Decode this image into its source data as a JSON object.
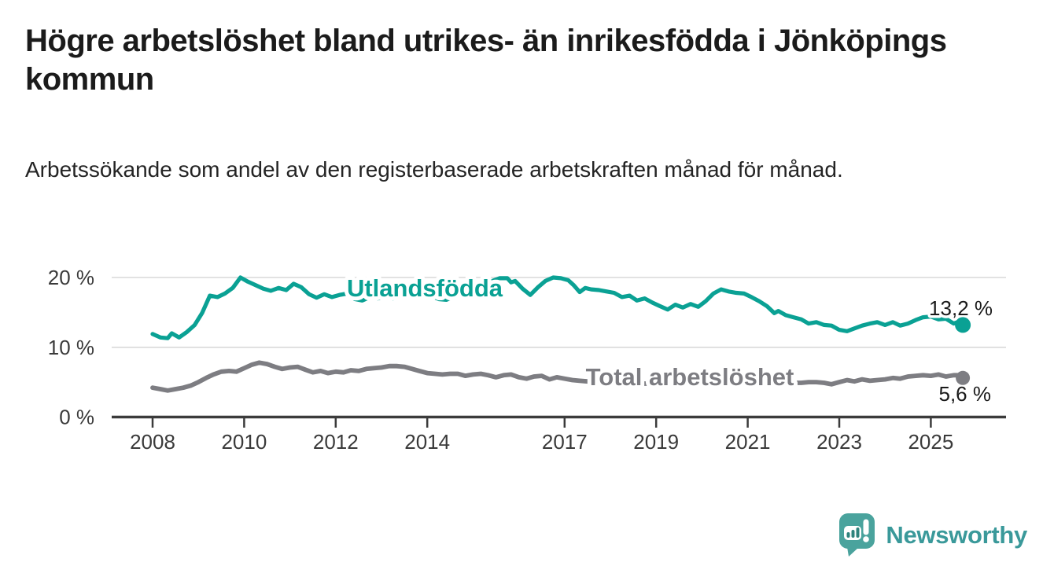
{
  "header": {
    "title": "Högre arbetslöshet bland utrikes- än inrikesfödda i Jönköpings kommun",
    "subtitle": "Arbetssökande som andel av den registerbaserade arbetskraften månad för månad."
  },
  "chart_data": {
    "type": "line",
    "title": "Högre arbetslöshet bland utrikes- än inrikesfödda i Jönköpings kommun",
    "subtitle": "Arbetssökande som andel av den registerbaserade arbetskraften månad för månad.",
    "unit": "%",
    "grid": true,
    "legend_position": "inline-labels-on-lines",
    "x_axis": {
      "ticks": [
        2008,
        2010,
        2012,
        2014,
        2017,
        2019,
        2021,
        2023,
        2025
      ],
      "range": [
        2007.1,
        2026.6
      ]
    },
    "y_axis": {
      "ticks": [
        0,
        10,
        20
      ],
      "tick_labels": [
        "0 %",
        "10 %",
        "20 %"
      ],
      "range": [
        0,
        21.5
      ]
    },
    "series": [
      {
        "name": "Utlandsfödda",
        "color": "#0aa194",
        "end_value": 13.2,
        "end_label": "13,2 %",
        "points": [
          [
            2008.0,
            11.9
          ],
          [
            2008.17,
            11.4
          ],
          [
            2008.33,
            11.3
          ],
          [
            2008.42,
            12.0
          ],
          [
            2008.58,
            11.4
          ],
          [
            2008.75,
            12.2
          ],
          [
            2008.92,
            13.2
          ],
          [
            2009.08,
            14.9
          ],
          [
            2009.25,
            17.4
          ],
          [
            2009.42,
            17.2
          ],
          [
            2009.58,
            17.7
          ],
          [
            2009.75,
            18.5
          ],
          [
            2009.92,
            20.0
          ],
          [
            2010.08,
            19.4
          ],
          [
            2010.25,
            18.9
          ],
          [
            2010.42,
            18.4
          ],
          [
            2010.58,
            18.1
          ],
          [
            2010.75,
            18.5
          ],
          [
            2010.92,
            18.2
          ],
          [
            2011.08,
            19.1
          ],
          [
            2011.25,
            18.6
          ],
          [
            2011.42,
            17.6
          ],
          [
            2011.58,
            17.1
          ],
          [
            2011.75,
            17.6
          ],
          [
            2011.92,
            17.2
          ],
          [
            2012.08,
            17.5
          ],
          [
            2012.25,
            17.7
          ],
          [
            2012.42,
            16.9
          ],
          [
            2012.58,
            16.7
          ],
          [
            2012.75,
            17.2
          ],
          [
            2012.92,
            17.0
          ],
          [
            2013.08,
            17.3
          ],
          [
            2013.25,
            17.0
          ],
          [
            2013.42,
            17.4
          ],
          [
            2013.58,
            17.3
          ],
          [
            2013.75,
            17.4
          ],
          [
            2013.92,
            17.3
          ],
          [
            2014.08,
            17.4
          ],
          [
            2014.25,
            16.9
          ],
          [
            2014.42,
            16.8
          ],
          [
            2014.58,
            17.3
          ],
          [
            2014.75,
            17.5
          ],
          [
            2014.92,
            17.8
          ],
          [
            2015.08,
            18.2
          ],
          [
            2015.25,
            18.8
          ],
          [
            2015.42,
            19.5
          ],
          [
            2015.58,
            19.9
          ],
          [
            2015.75,
            19.9
          ],
          [
            2015.83,
            19.3
          ],
          [
            2015.92,
            19.5
          ],
          [
            2016.08,
            18.4
          ],
          [
            2016.25,
            17.5
          ],
          [
            2016.42,
            18.6
          ],
          [
            2016.58,
            19.5
          ],
          [
            2016.75,
            20.0
          ],
          [
            2016.92,
            19.9
          ],
          [
            2017.08,
            19.6
          ],
          [
            2017.2,
            18.9
          ],
          [
            2017.33,
            17.9
          ],
          [
            2017.45,
            18.5
          ],
          [
            2017.58,
            18.3
          ],
          [
            2017.75,
            18.2
          ],
          [
            2017.92,
            18.0
          ],
          [
            2018.08,
            17.8
          ],
          [
            2018.25,
            17.2
          ],
          [
            2018.42,
            17.4
          ],
          [
            2018.58,
            16.7
          ],
          [
            2018.75,
            17.0
          ],
          [
            2018.92,
            16.4
          ],
          [
            2019.08,
            15.9
          ],
          [
            2019.25,
            15.4
          ],
          [
            2019.42,
            16.1
          ],
          [
            2019.58,
            15.7
          ],
          [
            2019.75,
            16.2
          ],
          [
            2019.92,
            15.8
          ],
          [
            2020.08,
            16.6
          ],
          [
            2020.25,
            17.7
          ],
          [
            2020.42,
            18.3
          ],
          [
            2020.58,
            18.0
          ],
          [
            2020.75,
            17.8
          ],
          [
            2020.92,
            17.7
          ],
          [
            2021.08,
            17.2
          ],
          [
            2021.25,
            16.6
          ],
          [
            2021.42,
            15.9
          ],
          [
            2021.58,
            14.9
          ],
          [
            2021.67,
            15.2
          ],
          [
            2021.83,
            14.6
          ],
          [
            2022.0,
            14.3
          ],
          [
            2022.17,
            14.0
          ],
          [
            2022.33,
            13.4
          ],
          [
            2022.5,
            13.6
          ],
          [
            2022.67,
            13.2
          ],
          [
            2022.83,
            13.1
          ],
          [
            2023.0,
            12.5
          ],
          [
            2023.17,
            12.3
          ],
          [
            2023.33,
            12.7
          ],
          [
            2023.5,
            13.1
          ],
          [
            2023.67,
            13.4
          ],
          [
            2023.83,
            13.6
          ],
          [
            2024.0,
            13.2
          ],
          [
            2024.17,
            13.6
          ],
          [
            2024.33,
            13.1
          ],
          [
            2024.5,
            13.4
          ],
          [
            2024.67,
            13.9
          ],
          [
            2024.83,
            14.3
          ],
          [
            2025.0,
            14.4
          ],
          [
            2025.17,
            14.0
          ],
          [
            2025.33,
            14.1
          ],
          [
            2025.5,
            13.4
          ],
          [
            2025.58,
            13.6
          ],
          [
            2025.7,
            13.2
          ]
        ]
      },
      {
        "name": "Total arbetslöshet",
        "color": "#7d7d82",
        "end_value": 5.6,
        "end_label": "5,6 %",
        "points": [
          [
            2008.0,
            4.2
          ],
          [
            2008.17,
            4.0
          ],
          [
            2008.33,
            3.8
          ],
          [
            2008.5,
            4.0
          ],
          [
            2008.67,
            4.2
          ],
          [
            2008.83,
            4.5
          ],
          [
            2009.0,
            5.0
          ],
          [
            2009.17,
            5.6
          ],
          [
            2009.33,
            6.1
          ],
          [
            2009.5,
            6.5
          ],
          [
            2009.67,
            6.6
          ],
          [
            2009.83,
            6.5
          ],
          [
            2010.0,
            7.0
          ],
          [
            2010.17,
            7.5
          ],
          [
            2010.33,
            7.8
          ],
          [
            2010.5,
            7.6
          ],
          [
            2010.67,
            7.2
          ],
          [
            2010.83,
            6.9
          ],
          [
            2011.0,
            7.1
          ],
          [
            2011.17,
            7.2
          ],
          [
            2011.33,
            6.8
          ],
          [
            2011.5,
            6.4
          ],
          [
            2011.67,
            6.6
          ],
          [
            2011.83,
            6.3
          ],
          [
            2012.0,
            6.5
          ],
          [
            2012.17,
            6.4
          ],
          [
            2012.33,
            6.7
          ],
          [
            2012.5,
            6.6
          ],
          [
            2012.67,
            6.9
          ],
          [
            2012.83,
            7.0
          ],
          [
            2013.0,
            7.1
          ],
          [
            2013.17,
            7.3
          ],
          [
            2013.33,
            7.3
          ],
          [
            2013.5,
            7.2
          ],
          [
            2013.67,
            6.9
          ],
          [
            2013.83,
            6.6
          ],
          [
            2014.0,
            6.3
          ],
          [
            2014.17,
            6.2
          ],
          [
            2014.33,
            6.1
          ],
          [
            2014.5,
            6.2
          ],
          [
            2014.67,
            6.2
          ],
          [
            2014.83,
            5.9
          ],
          [
            2015.0,
            6.1
          ],
          [
            2015.17,
            6.2
          ],
          [
            2015.33,
            6.0
          ],
          [
            2015.5,
            5.7
          ],
          [
            2015.67,
            6.0
          ],
          [
            2015.83,
            6.1
          ],
          [
            2016.0,
            5.7
          ],
          [
            2016.17,
            5.5
          ],
          [
            2016.33,
            5.8
          ],
          [
            2016.5,
            5.9
          ],
          [
            2016.67,
            5.4
          ],
          [
            2016.83,
            5.7
          ],
          [
            2017.0,
            5.5
          ],
          [
            2017.17,
            5.3
          ],
          [
            2017.33,
            5.2
          ],
          [
            2017.5,
            5.1
          ],
          [
            2017.67,
            5.0
          ],
          [
            2017.83,
            4.9
          ],
          [
            2018.0,
            4.9
          ],
          [
            2018.25,
            4.8
          ],
          [
            2018.5,
            4.7
          ],
          [
            2018.75,
            4.8
          ],
          [
            2019.0,
            4.7
          ],
          [
            2019.25,
            4.7
          ],
          [
            2019.5,
            4.8
          ],
          [
            2019.75,
            5.0
          ],
          [
            2020.0,
            5.2
          ],
          [
            2020.17,
            5.7
          ],
          [
            2020.33,
            6.0
          ],
          [
            2020.5,
            6.1
          ],
          [
            2020.67,
            6.0
          ],
          [
            2020.83,
            5.9
          ],
          [
            2021.0,
            5.7
          ],
          [
            2021.17,
            5.5
          ],
          [
            2021.33,
            5.3
          ],
          [
            2021.5,
            5.2
          ],
          [
            2021.67,
            5.1
          ],
          [
            2021.83,
            5.0
          ],
          [
            2022.0,
            4.9
          ],
          [
            2022.17,
            4.9
          ],
          [
            2022.33,
            5.0
          ],
          [
            2022.5,
            5.0
          ],
          [
            2022.67,
            4.9
          ],
          [
            2022.83,
            4.7
          ],
          [
            2023.0,
            5.0
          ],
          [
            2023.17,
            5.3
          ],
          [
            2023.33,
            5.1
          ],
          [
            2023.5,
            5.4
          ],
          [
            2023.67,
            5.2
          ],
          [
            2023.83,
            5.3
          ],
          [
            2024.0,
            5.4
          ],
          [
            2024.17,
            5.6
          ],
          [
            2024.33,
            5.5
          ],
          [
            2024.5,
            5.8
          ],
          [
            2024.67,
            5.9
          ],
          [
            2024.83,
            6.0
          ],
          [
            2025.0,
            5.9
          ],
          [
            2025.17,
            6.1
          ],
          [
            2025.33,
            5.8
          ],
          [
            2025.5,
            6.0
          ],
          [
            2025.58,
            6.0
          ],
          [
            2025.7,
            5.6
          ]
        ]
      }
    ]
  },
  "footer": {
    "brand": "Newsworthy",
    "logo_icon": "bar-chart-speech-bubble-icon",
    "brand_color": "#3a999a",
    "bubble_color": "#4aa39d"
  }
}
